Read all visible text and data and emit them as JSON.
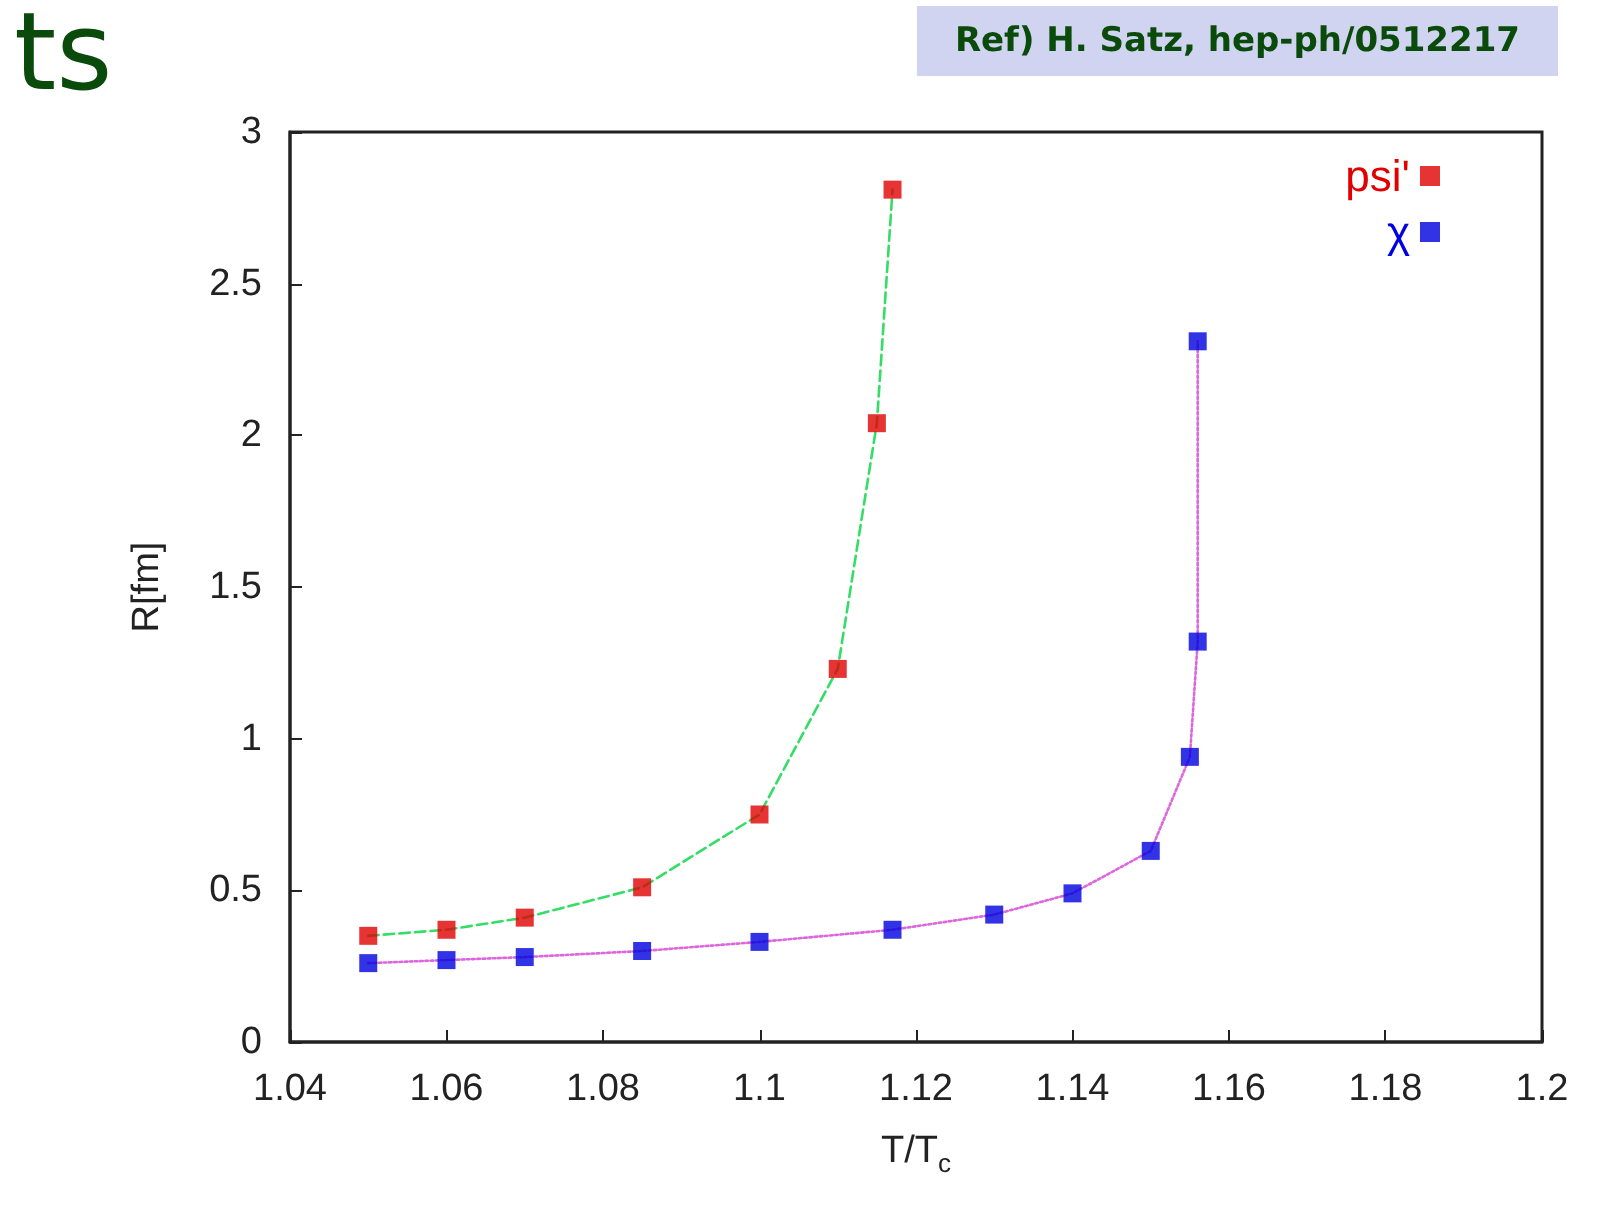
{
  "chart_data": {
    "type": "scatter",
    "title": "ts",
    "xlabel": "T/T$_{c}$",
    "ylabel": "R[fm]",
    "annotations": [
      "Ref) H. Satz, hep-ph/0512217"
    ],
    "xlim": [
      1.04,
      1.2
    ],
    "xticks": [
      1.04,
      1.06,
      1.08,
      1.1,
      1.12,
      1.14,
      1.16,
      1.18,
      1.2
    ],
    "ylim": [
      0,
      3
    ],
    "yticks": [
      0,
      0.5,
      1,
      1.5,
      2,
      2.5,
      3
    ],
    "grid": false,
    "legend": "top right",
    "marker": "square",
    "series": [
      {
        "name": "psi'",
        "color": "#e00000",
        "x": [
          1.05,
          1.06,
          1.07,
          1.085,
          1.1,
          1.11,
          1.115,
          1.117
        ],
        "values": [
          0.35,
          0.37,
          0.41,
          0.51,
          0.75,
          1.23,
          2.04,
          2.81
        ]
      },
      {
        "name": "χ",
        "color": "#0000e0",
        "x": [
          1.05,
          1.06,
          1.07,
          1.085,
          1.1,
          1.117,
          1.13,
          1.14,
          1.15,
          1.155,
          1.156,
          1.156
        ],
        "values": [
          0.26,
          0.27,
          0.28,
          0.3,
          0.33,
          0.37,
          0.42,
          0.49,
          0.63,
          0.94,
          1.32,
          2.31
        ]
      },
      {
        "type": "line",
        "color": "#33dd66",
        "line_style": "dashed",
        "marker": "none",
        "x": [
          1.05,
          1.06,
          1.07,
          1.085,
          1.1,
          1.11,
          1.115,
          1.117
        ],
        "values": [
          0.35,
          0.37,
          0.41,
          0.51,
          0.75,
          1.23,
          2.04,
          2.81
        ]
      },
      {
        "type": "line",
        "color": "#dd66dd",
        "line_style": "dotted",
        "marker": "none",
        "x": [
          1.05,
          1.06,
          1.07,
          1.085,
          1.1,
          1.117,
          1.13,
          1.14,
          1.15,
          1.155,
          1.156,
          1.156
        ],
        "values": [
          0.26,
          0.27,
          0.28,
          0.3,
          0.33,
          0.37,
          0.42,
          0.49,
          0.63,
          0.94,
          1.32,
          2.31
        ]
      }
    ]
  }
}
